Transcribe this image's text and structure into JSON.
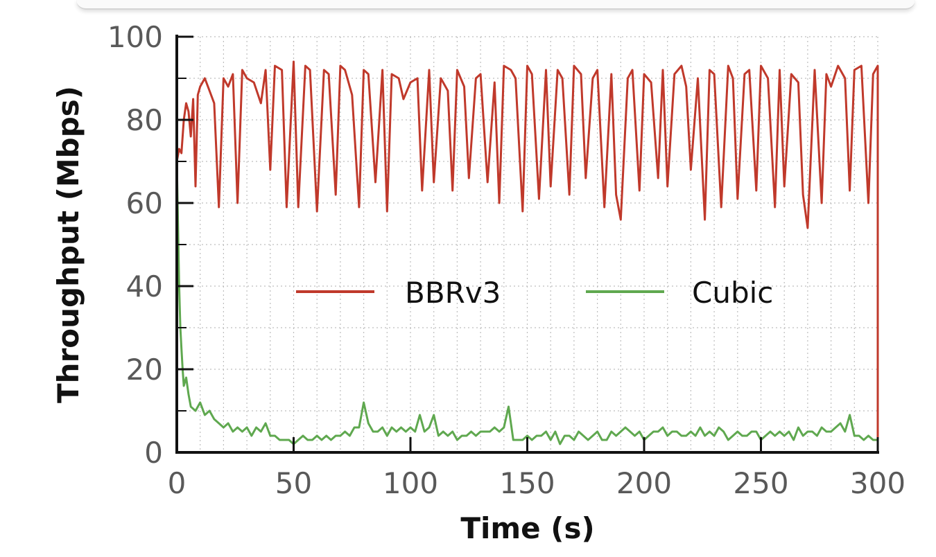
{
  "chart_data": {
    "type": "line",
    "title": "",
    "xlabel": "Time (s)",
    "ylabel": "Throughput (Mbps)",
    "xlim": [
      0,
      300
    ],
    "ylim": [
      0,
      100
    ],
    "xticks": [
      0,
      50,
      100,
      150,
      200,
      250,
      300
    ],
    "yticks": [
      0,
      20,
      40,
      60,
      80,
      100
    ],
    "grid": true,
    "legend_position": "center",
    "series": [
      {
        "name": "BBRv3",
        "color": "#c0392b",
        "x": [
          0,
          1,
          2,
          3,
          4,
          5,
          6,
          7,
          8,
          9,
          10,
          12,
          14,
          16,
          18,
          20,
          22,
          24,
          26,
          28,
          30,
          33,
          36,
          38,
          40,
          42,
          45,
          47,
          50,
          52,
          55,
          57,
          60,
          63,
          65,
          68,
          70,
          72,
          75,
          78,
          80,
          82,
          85,
          88,
          90,
          92,
          95,
          97,
          100,
          103,
          105,
          108,
          110,
          113,
          116,
          118,
          120,
          123,
          125,
          128,
          130,
          133,
          136,
          138,
          140,
          143,
          145,
          148,
          150,
          152,
          155,
          158,
          160,
          163,
          165,
          168,
          170,
          173,
          175,
          178,
          180,
          183,
          186,
          188,
          190,
          193,
          195,
          198,
          200,
          203,
          206,
          208,
          210,
          213,
          216,
          218,
          220,
          223,
          226,
          228,
          230,
          233,
          236,
          238,
          240,
          243,
          245,
          248,
          250,
          253,
          256,
          258,
          260,
          263,
          266,
          268,
          270,
          273,
          276,
          278,
          280,
          283,
          286,
          288,
          290,
          293,
          296,
          298,
          299,
          300
        ],
        "y": [
          70,
          73,
          72,
          80,
          84,
          82,
          76,
          85,
          64,
          86,
          88,
          90,
          87,
          84,
          59,
          90,
          88,
          91,
          60,
          92,
          90,
          89,
          84,
          92,
          68,
          93,
          92,
          59,
          94,
          59,
          93,
          92,
          58,
          92,
          91,
          62,
          93,
          92,
          86,
          59,
          92,
          91,
          65,
          92,
          58,
          91,
          90,
          85,
          89,
          90,
          63,
          92,
          65,
          90,
          87,
          63,
          92,
          88,
          66,
          90,
          91,
          65,
          89,
          60,
          93,
          92,
          90,
          58,
          93,
          91,
          61,
          92,
          64,
          92,
          90,
          62,
          93,
          91,
          66,
          90,
          92,
          59,
          91,
          62,
          56,
          90,
          92,
          63,
          91,
          89,
          66,
          92,
          64,
          91,
          93,
          88,
          68,
          90,
          56,
          92,
          91,
          59,
          93,
          90,
          61,
          91,
          92,
          63,
          93,
          90,
          59,
          92,
          64,
          91,
          89,
          62,
          54,
          92,
          60,
          91,
          88,
          93,
          90,
          63,
          92,
          93,
          60,
          91,
          92,
          93
        ],
        "end_drop": 0
      },
      {
        "name": "Cubic",
        "color": "#5fa84f",
        "x": [
          0,
          0.5,
          1,
          1.5,
          2,
          2.5,
          3,
          4,
          5,
          6,
          8,
          10,
          12,
          14,
          16,
          18,
          20,
          22,
          24,
          26,
          28,
          30,
          32,
          34,
          36,
          38,
          40,
          42,
          44,
          46,
          48,
          50,
          52,
          54,
          56,
          58,
          60,
          62,
          64,
          66,
          68,
          70,
          72,
          74,
          76,
          78,
          80,
          82,
          84,
          86,
          88,
          90,
          92,
          94,
          96,
          98,
          100,
          102,
          104,
          106,
          108,
          110,
          112,
          114,
          116,
          118,
          120,
          122,
          124,
          126,
          128,
          130,
          132,
          134,
          136,
          138,
          140,
          142,
          144,
          146,
          148,
          150,
          152,
          154,
          156,
          158,
          160,
          162,
          164,
          166,
          168,
          170,
          172,
          174,
          176,
          178,
          180,
          182,
          184,
          186,
          188,
          190,
          192,
          194,
          196,
          198,
          200,
          202,
          204,
          206,
          208,
          210,
          212,
          214,
          216,
          218,
          220,
          222,
          224,
          226,
          228,
          230,
          232,
          234,
          236,
          238,
          240,
          242,
          244,
          246,
          248,
          250,
          252,
          254,
          256,
          258,
          260,
          262,
          264,
          266,
          268,
          270,
          272,
          274,
          276,
          278,
          280,
          282,
          284,
          286,
          288,
          290,
          292,
          294,
          296,
          298,
          300
        ],
        "y": [
          70,
          55,
          40,
          30,
          25,
          20,
          16,
          18,
          14,
          11,
          10,
          12,
          9,
          10,
          8,
          7,
          6,
          7,
          5,
          6,
          5,
          6,
          4,
          6,
          5,
          7,
          4,
          4,
          3,
          3,
          3,
          2,
          3,
          4,
          3,
          3,
          4,
          3,
          4,
          3,
          4,
          4,
          5,
          4,
          6,
          6,
          12,
          7,
          5,
          5,
          6,
          4,
          6,
          5,
          6,
          5,
          6,
          5,
          9,
          5,
          6,
          9,
          4,
          5,
          4,
          5,
          3,
          4,
          4,
          5,
          4,
          5,
          5,
          5,
          6,
          5,
          6,
          11,
          3,
          3,
          3,
          4,
          3,
          4,
          4,
          5,
          3,
          5,
          2,
          4,
          4,
          3,
          5,
          4,
          3,
          4,
          5,
          3,
          3,
          5,
          4,
          5,
          6,
          5,
          4,
          5,
          3,
          4,
          5,
          5,
          6,
          4,
          5,
          5,
          4,
          4,
          5,
          4,
          6,
          4,
          5,
          4,
          6,
          5,
          3,
          4,
          5,
          4,
          4,
          5,
          5,
          3,
          4,
          5,
          4,
          5,
          4,
          5,
          3,
          6,
          4,
          5,
          5,
          4,
          6,
          5,
          5,
          6,
          7,
          5,
          9,
          4,
          4,
          3,
          4,
          3,
          3
        ]
      }
    ]
  }
}
